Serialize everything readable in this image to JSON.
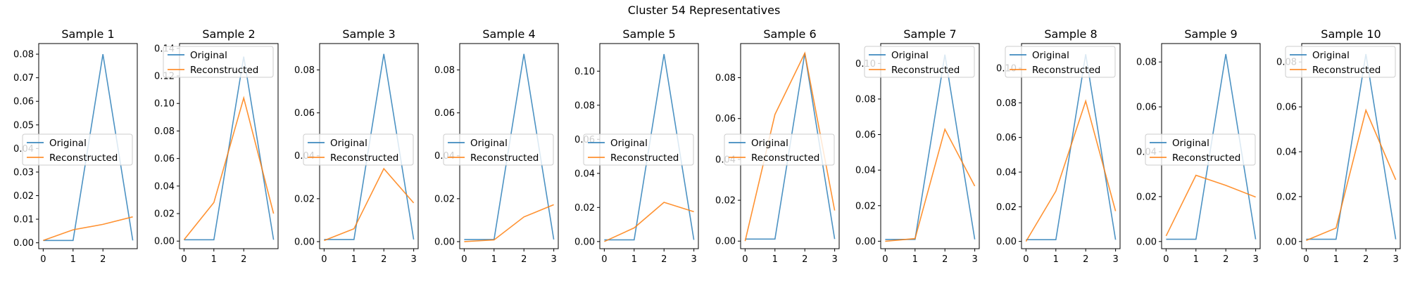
{
  "figure": {
    "title": "Cluster 54 Representatives"
  },
  "colors": {
    "original": "#1f77b4",
    "reconstructed": "#ff7f0e",
    "axes": "#000000"
  },
  "chart_data": [
    {
      "type": "line",
      "title": "Sample 1",
      "x": [
        0,
        1,
        2,
        3
      ],
      "xticks": [
        0,
        1,
        2
      ],
      "ylim": [
        -0.0025,
        0.0845
      ],
      "yticks": [
        0.0,
        0.01,
        0.02,
        0.03,
        0.04,
        0.05,
        0.06,
        0.07,
        0.08
      ],
      "yticklabels": [
        "0.00",
        "0.01",
        "0.02",
        "0.03",
        "0.04",
        "0.05",
        "0.06",
        "0.07",
        "0.08"
      ],
      "legend": "center-left",
      "series": [
        {
          "name": "Original",
          "values": [
            0.001,
            0.001,
            0.08,
            0.001
          ]
        },
        {
          "name": "Reconstructed",
          "values": [
            0.001,
            0.0055,
            0.0078,
            0.011
          ]
        }
      ]
    },
    {
      "type": "line",
      "title": "Sample 2",
      "x": [
        0,
        1,
        2,
        3
      ],
      "xticks": [
        0,
        1,
        2
      ],
      "ylim": [
        -0.0055,
        0.1435
      ],
      "yticks": [
        0.0,
        0.02,
        0.04,
        0.06,
        0.08,
        0.1,
        0.12,
        0.14
      ],
      "yticklabels": [
        "0.00",
        "0.02",
        "0.04",
        "0.06",
        "0.08",
        "0.10",
        "0.12",
        "0.14"
      ],
      "legend": "top-left",
      "series": [
        {
          "name": "Original",
          "values": [
            0.001,
            0.001,
            0.134,
            0.001
          ]
        },
        {
          "name": "Reconstructed",
          "values": [
            0.001,
            0.028,
            0.104,
            0.02
          ]
        }
      ]
    },
    {
      "type": "line",
      "title": "Sample 3",
      "x": [
        0,
        1,
        2,
        3
      ],
      "xticks": [
        0,
        1,
        2,
        3
      ],
      "ylim": [
        -0.0033,
        0.0923
      ],
      "yticks": [
        0.0,
        0.02,
        0.04,
        0.06,
        0.08
      ],
      "yticklabels": [
        "0.00",
        "0.02",
        "0.04",
        "0.06",
        "0.08"
      ],
      "legend": "center-left",
      "series": [
        {
          "name": "Original",
          "values": [
            0.001,
            0.001,
            0.0875,
            0.001
          ]
        },
        {
          "name": "Reconstructed",
          "values": [
            0.0005,
            0.006,
            0.034,
            0.018
          ]
        }
      ]
    },
    {
      "type": "line",
      "title": "Sample 4",
      "x": [
        0,
        1,
        2,
        3
      ],
      "xticks": [
        0,
        1,
        2,
        3
      ],
      "ylim": [
        -0.0033,
        0.0923
      ],
      "yticks": [
        0.0,
        0.02,
        0.04,
        0.06,
        0.08
      ],
      "yticklabels": [
        "0.00",
        "0.02",
        "0.04",
        "0.06",
        "0.08"
      ],
      "legend": "center-left",
      "series": [
        {
          "name": "Original",
          "values": [
            0.001,
            0.001,
            0.0875,
            0.001
          ]
        },
        {
          "name": "Reconstructed",
          "values": [
            0.0,
            0.0008,
            0.0115,
            0.0172
          ]
        }
      ]
    },
    {
      "type": "line",
      "title": "Sample 5",
      "x": [
        0,
        1,
        2,
        3
      ],
      "xticks": [
        0,
        1,
        2,
        3
      ],
      "ylim": [
        -0.0042,
        0.1162
      ],
      "yticks": [
        0.0,
        0.02,
        0.04,
        0.06,
        0.08,
        0.1
      ],
      "yticklabels": [
        "0.00",
        "0.02",
        "0.04",
        "0.06",
        "0.08",
        "0.10"
      ],
      "legend": "center-left",
      "series": [
        {
          "name": "Original",
          "values": [
            0.001,
            0.001,
            0.11,
            0.001
          ]
        },
        {
          "name": "Reconstructed",
          "values": [
            0.0,
            0.008,
            0.023,
            0.0175
          ]
        }
      ]
    },
    {
      "type": "line",
      "title": "Sample 6",
      "x": [
        0,
        1,
        2,
        3
      ],
      "xticks": [
        0,
        1,
        2,
        3
      ],
      "ylim": [
        -0.0037,
        0.0967
      ],
      "yticks": [
        0.0,
        0.02,
        0.04,
        0.06,
        0.08
      ],
      "yticklabels": [
        "0.00",
        "0.02",
        "0.04",
        "0.06",
        "0.08"
      ],
      "legend": "center-left",
      "series": [
        {
          "name": "Original",
          "values": [
            0.001,
            0.001,
            0.092,
            0.001
          ]
        },
        {
          "name": "Reconstructed",
          "values": [
            0.0,
            0.062,
            0.092,
            0.015
          ]
        }
      ]
    },
    {
      "type": "line",
      "title": "Sample 7",
      "x": [
        0,
        1,
        2,
        3
      ],
      "xticks": [
        0,
        1,
        2,
        3
      ],
      "ylim": [
        -0.0042,
        0.1112
      ],
      "yticks": [
        0.0,
        0.02,
        0.04,
        0.06,
        0.08,
        0.1
      ],
      "yticklabels": [
        "0.00",
        "0.02",
        "0.04",
        "0.06",
        "0.08",
        "0.10"
      ],
      "legend": "top-left",
      "series": [
        {
          "name": "Original",
          "values": [
            0.001,
            0.001,
            0.105,
            0.001
          ]
        },
        {
          "name": "Reconstructed",
          "values": [
            0.0,
            0.0015,
            0.063,
            0.031
          ]
        }
      ]
    },
    {
      "type": "line",
      "title": "Sample 8",
      "x": [
        0,
        1,
        2,
        3
      ],
      "xticks": [
        0,
        1,
        2,
        3
      ],
      "ylim": [
        -0.0042,
        0.1142
      ],
      "yticks": [
        0.0,
        0.02,
        0.04,
        0.06,
        0.08,
        0.1
      ],
      "yticklabels": [
        "0.00",
        "0.02",
        "0.04",
        "0.06",
        "0.08",
        "0.10"
      ],
      "legend": "top-left",
      "series": [
        {
          "name": "Original",
          "values": [
            0.001,
            0.001,
            0.108,
            0.001
          ]
        },
        {
          "name": "Reconstructed",
          "values": [
            0.0,
            0.029,
            0.081,
            0.0175
          ]
        }
      ]
    },
    {
      "type": "line",
      "title": "Sample 9",
      "x": [
        0,
        1,
        2,
        3
      ],
      "xticks": [
        0,
        1,
        2,
        3
      ],
      "ylim": [
        -0.0032,
        0.0882
      ],
      "yticks": [
        0.0,
        0.02,
        0.04,
        0.06,
        0.08
      ],
      "yticklabels": [
        "0.00",
        "0.02",
        "0.04",
        "0.06",
        "0.08"
      ],
      "legend": "center-left",
      "series": [
        {
          "name": "Original",
          "values": [
            0.001,
            0.001,
            0.0835,
            0.001
          ]
        },
        {
          "name": "Reconstructed",
          "values": [
            0.0025,
            0.0295,
            0.025,
            0.0198
          ]
        }
      ]
    },
    {
      "type": "line",
      "title": "Sample 10",
      "x": [
        0,
        1,
        2,
        3
      ],
      "xticks": [
        0,
        1,
        2,
        3
      ],
      "ylim": [
        -0.0032,
        0.0882
      ],
      "yticks": [
        0.0,
        0.02,
        0.04,
        0.06,
        0.08
      ],
      "yticklabels": [
        "0.00",
        "0.02",
        "0.04",
        "0.06",
        "0.08"
      ],
      "legend": "top-left",
      "series": [
        {
          "name": "Original",
          "values": [
            0.001,
            0.001,
            0.0835,
            0.001
          ]
        },
        {
          "name": "Reconstructed",
          "values": [
            0.0005,
            0.006,
            0.0585,
            0.0275
          ]
        }
      ]
    }
  ]
}
